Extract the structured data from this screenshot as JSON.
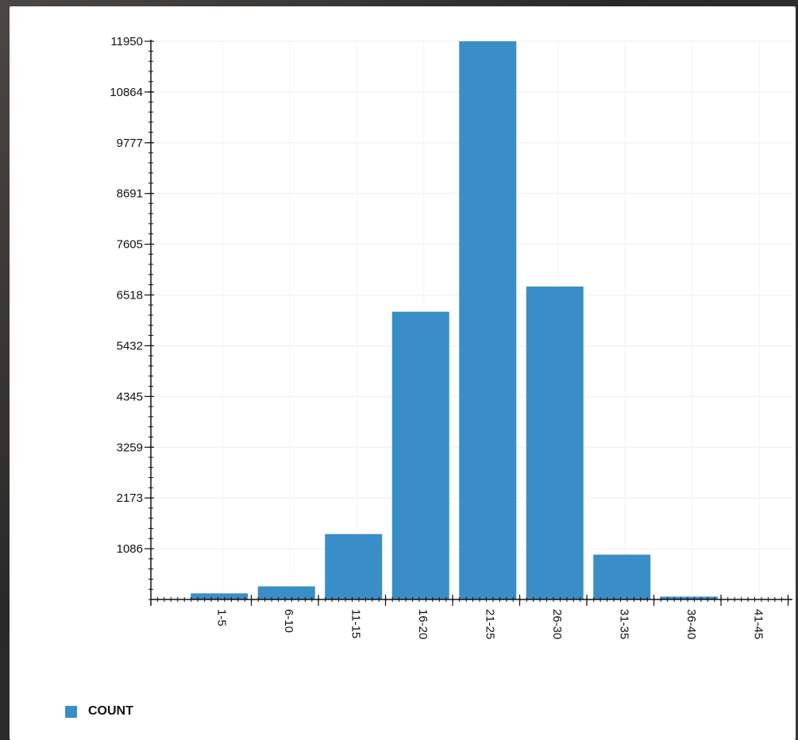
{
  "chart_data": {
    "type": "bar",
    "categories": [
      "1-5",
      "6-10",
      "11-15",
      "16-20",
      "21-25",
      "26-30",
      "31-35",
      "36-40",
      "41-45"
    ],
    "series": [
      {
        "name": "COUNT",
        "color": "#3a8ec7",
        "values": [
          130,
          280,
          1400,
          6160,
          11950,
          6700,
          960,
          60,
          0
        ]
      }
    ],
    "yticks": [
      1086,
      2173,
      3259,
      4345,
      5432,
      6518,
      7605,
      8691,
      9777,
      10864,
      11950
    ],
    "ylim": [
      0,
      11950
    ],
    "grid": true,
    "legend_position": "bottom-left"
  }
}
